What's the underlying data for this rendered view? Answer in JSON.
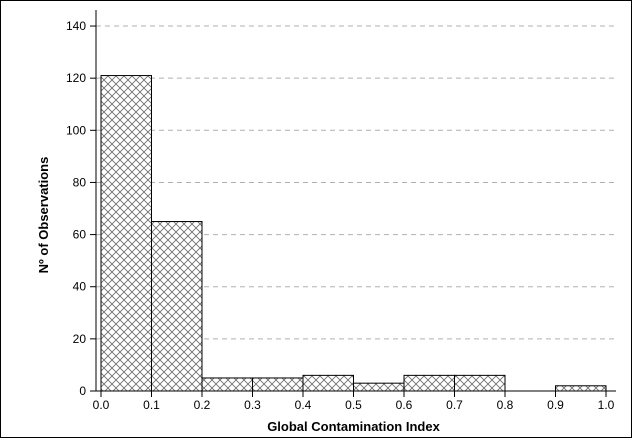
{
  "chart_data": {
    "type": "bar",
    "title": "",
    "xlabel": "Global Contamination Index",
    "ylabel": "Nº of Observations",
    "xlim": [
      0.0,
      1.0
    ],
    "ylim": [
      0,
      145
    ],
    "x_ticks": [
      "0.0",
      "0.1",
      "0.2",
      "0.3",
      "0.4",
      "0.5",
      "0.6",
      "0.7",
      "0.8",
      "0.9",
      "1.0"
    ],
    "y_ticks": [
      "0",
      "20",
      "40",
      "60",
      "80",
      "100",
      "120",
      "140"
    ],
    "grid": "horizontal dashed",
    "bins": [
      {
        "x0": 0.0,
        "x1": 0.1,
        "value": 121
      },
      {
        "x0": 0.1,
        "x1": 0.2,
        "value": 65
      },
      {
        "x0": 0.2,
        "x1": 0.3,
        "value": 5
      },
      {
        "x0": 0.3,
        "x1": 0.4,
        "value": 5
      },
      {
        "x0": 0.4,
        "x1": 0.5,
        "value": 6
      },
      {
        "x0": 0.5,
        "x1": 0.6,
        "value": 3
      },
      {
        "x0": 0.6,
        "x1": 0.7,
        "value": 6
      },
      {
        "x0": 0.7,
        "x1": 0.8,
        "value": 6
      },
      {
        "x0": 0.8,
        "x1": 0.9,
        "value": 0
      },
      {
        "x0": 0.9,
        "x1": 1.0,
        "value": 2
      }
    ],
    "bar_fill": "crosshatch",
    "bar_color": "#000000"
  }
}
